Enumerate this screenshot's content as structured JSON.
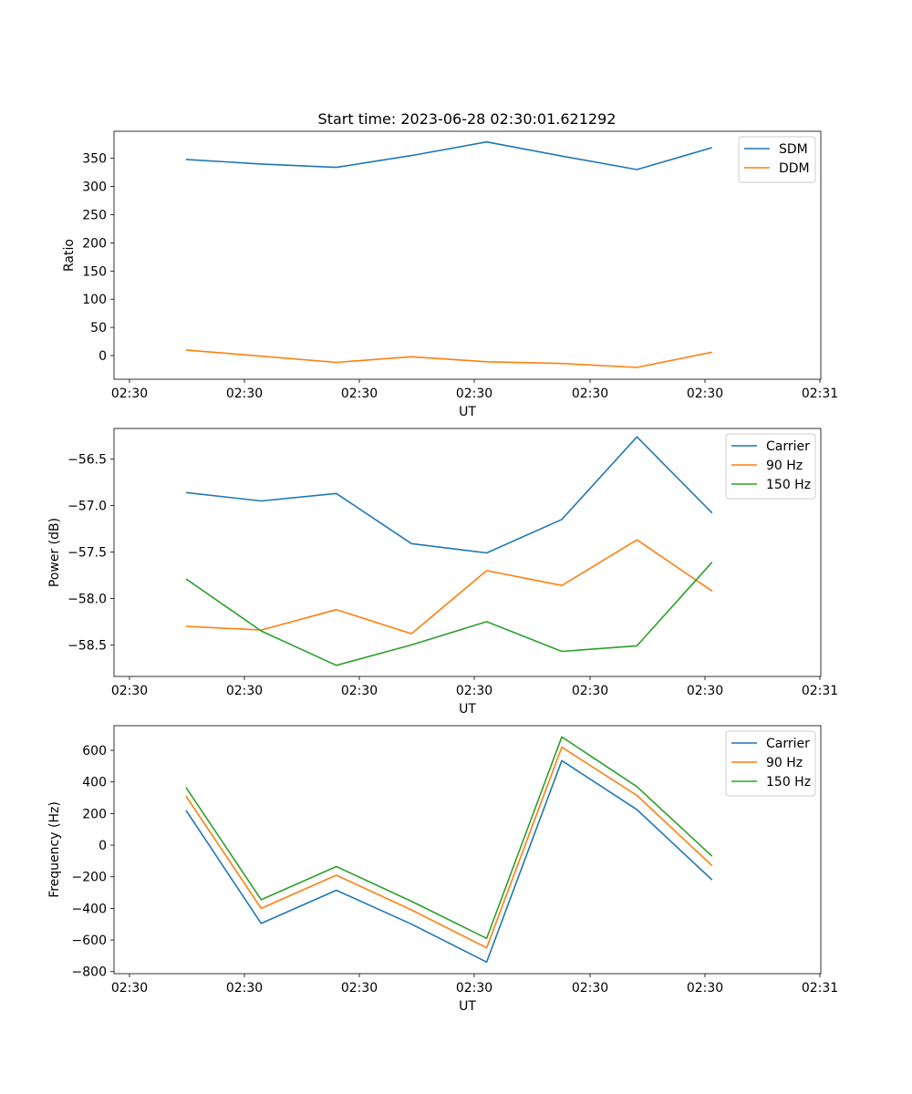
{
  "figure": {
    "title": "Start time: 2023-06-28 02:30:01.621292"
  },
  "chart_data": [
    {
      "type": "line",
      "title": "Start time: 2023-06-28 02:30:01.621292",
      "xlabel": "UT",
      "ylabel": "Ratio",
      "x_tick_labels": [
        "02:30",
        "02:30",
        "02:30",
        "02:30",
        "02:30",
        "02:30",
        "02:31"
      ],
      "y_ticks": [
        0,
        50,
        100,
        150,
        200,
        250,
        300,
        350
      ],
      "ylim": [
        -42,
        398
      ],
      "grid": false,
      "legend_position": "top-right",
      "series": [
        {
          "name": "SDM",
          "color": "#1f77b4",
          "values": [
            348,
            340,
            334,
            355,
            379,
            354,
            330,
            369
          ]
        },
        {
          "name": "DDM",
          "color": "#ff7f0e",
          "values": [
            10,
            -1,
            -12,
            -2,
            -11,
            -14,
            -21,
            6
          ]
        }
      ]
    },
    {
      "type": "line",
      "title": "",
      "xlabel": "UT",
      "ylabel": "Power (dB)",
      "x_tick_labels": [
        "02:30",
        "02:30",
        "02:30",
        "02:30",
        "02:30",
        "02:30",
        "02:31"
      ],
      "y_ticks": [
        -58.5,
        -58.0,
        -57.5,
        -57.0,
        -56.5
      ],
      "y_tick_labels": [
        "−58.5",
        "−58.0",
        "−57.5",
        "−57.0",
        "−56.5"
      ],
      "ylim": [
        -58.84,
        -56.17
      ],
      "grid": false,
      "legend_position": "top-right",
      "series": [
        {
          "name": "Carrier",
          "color": "#1f77b4",
          "values": [
            -56.86,
            -56.95,
            -56.87,
            -57.41,
            -57.51,
            -57.15,
            -56.26,
            -57.08
          ]
        },
        {
          "name": "90 Hz",
          "color": "#ff7f0e",
          "values": [
            -58.3,
            -58.34,
            -58.12,
            -58.38,
            -57.7,
            -57.86,
            -57.37,
            -57.92
          ]
        },
        {
          "name": "150 Hz",
          "color": "#2ca02c",
          "values": [
            -57.79,
            -58.35,
            -58.72,
            -58.5,
            -58.25,
            -58.57,
            -58.51,
            -57.61
          ]
        }
      ]
    },
    {
      "type": "line",
      "title": "",
      "xlabel": "UT",
      "ylabel": "Frequency (Hz)",
      "x_tick_labels": [
        "02:30",
        "02:30",
        "02:30",
        "02:30",
        "02:30",
        "02:30",
        "02:31"
      ],
      "y_ticks": [
        -800,
        -600,
        -400,
        -200,
        0,
        200,
        400,
        600
      ],
      "y_tick_labels": [
        "−800",
        "−600",
        "−400",
        "−200",
        "0",
        "200",
        "400",
        "600"
      ],
      "ylim": [
        -813,
        756
      ],
      "grid": false,
      "legend_position": "top-right",
      "series": [
        {
          "name": "Carrier",
          "color": "#1f77b4",
          "values": [
            220,
            -495,
            -285,
            -500,
            -740,
            535,
            225,
            -220
          ]
        },
        {
          "name": "90 Hz",
          "color": "#ff7f0e",
          "values": [
            310,
            -400,
            -190,
            -410,
            -650,
            620,
            315,
            -130
          ]
        },
        {
          "name": "150 Hz",
          "color": "#2ca02c",
          "values": [
            365,
            -345,
            -135,
            -355,
            -590,
            685,
            370,
            -70
          ]
        }
      ]
    }
  ]
}
